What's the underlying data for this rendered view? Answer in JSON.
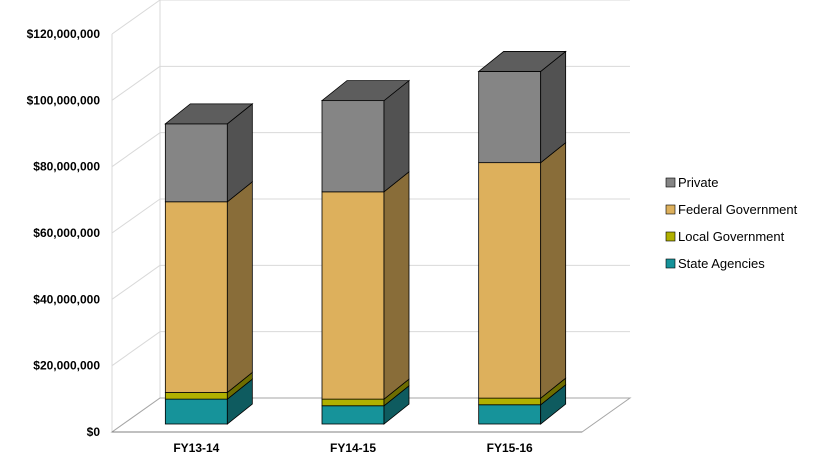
{
  "chart_data": {
    "type": "bar",
    "stacked": true,
    "three_d": true,
    "categories": [
      "FY13-14",
      "FY14-15",
      "FY15-16"
    ],
    "series": [
      {
        "name": "State Agencies",
        "values": [
          7500000,
          5500000,
          5800000
        ],
        "color": "#16939a"
      },
      {
        "name": "Local Government",
        "values": [
          2000000,
          2000000,
          2000000
        ],
        "color": "#b0b000"
      },
      {
        "name": "Federal Government",
        "values": [
          57500000,
          62500000,
          71000000
        ],
        "color": "#ddb05c"
      },
      {
        "name": "Private",
        "values": [
          23500000,
          27500000,
          27500000
        ],
        "color": "#858585"
      }
    ],
    "y_tick_labels": [
      "$0",
      "$20,000,000",
      "$40,000,000",
      "$60,000,000",
      "$80,000,000",
      "$100,000,000",
      "$120,000,000"
    ],
    "ylim": [
      0,
      120000000
    ],
    "grid": true,
    "legend_position": "right",
    "title": "",
    "xlabel": "",
    "ylabel": ""
  }
}
